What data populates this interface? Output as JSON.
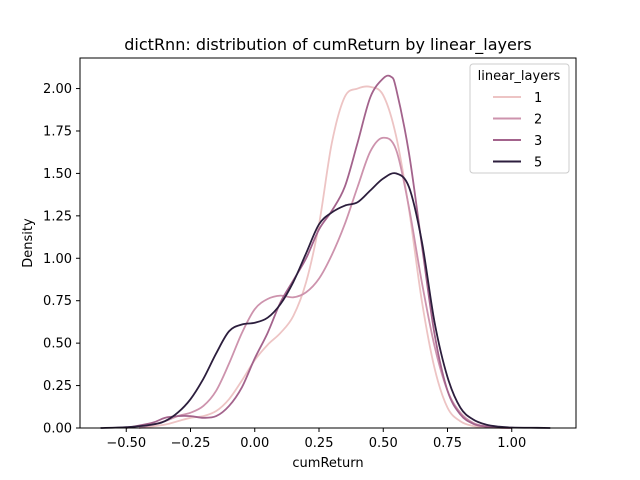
{
  "chart_data": {
    "type": "line",
    "title": "dictRnn: distribution of cumReturn by linear_layers",
    "xlabel": "cumReturn",
    "ylabel": "Density",
    "xlim": [
      -0.68,
      1.25
    ],
    "ylim": [
      0,
      2.18
    ],
    "xticks": [
      -0.5,
      -0.25,
      0.0,
      0.25,
      0.5,
      0.75,
      1.0
    ],
    "xtick_labels": [
      "−0.50",
      "−0.25",
      "0.00",
      "0.25",
      "0.50",
      "0.75",
      "1.00"
    ],
    "yticks": [
      0.0,
      0.25,
      0.5,
      0.75,
      1.0,
      1.25,
      1.5,
      1.75,
      2.0
    ],
    "ytick_labels": [
      "0.00",
      "0.25",
      "0.50",
      "0.75",
      "1.00",
      "1.25",
      "1.50",
      "1.75",
      "2.00"
    ],
    "grid": false,
    "legend": {
      "title": "linear_layers",
      "placement": "top-right"
    },
    "series": [
      {
        "name": "1",
        "color": "#edc4c4",
        "x": [
          -0.45,
          -0.35,
          -0.3,
          -0.25,
          -0.2,
          -0.15,
          -0.1,
          -0.05,
          0.0,
          0.05,
          0.1,
          0.15,
          0.2,
          0.25,
          0.3,
          0.35,
          0.4,
          0.45,
          0.5,
          0.55,
          0.6,
          0.65,
          0.7,
          0.75,
          0.8,
          0.85,
          0.9,
          0.95,
          1.0
        ],
        "y": [
          0.0,
          0.02,
          0.04,
          0.06,
          0.07,
          0.1,
          0.17,
          0.28,
          0.4,
          0.49,
          0.56,
          0.66,
          0.86,
          1.2,
          1.68,
          1.95,
          2.0,
          2.01,
          1.96,
          1.72,
          1.29,
          0.75,
          0.35,
          0.12,
          0.04,
          0.012,
          0.004,
          0.001,
          0.0
        ]
      },
      {
        "name": "2",
        "color": "#cd93ad",
        "x": [
          -0.45,
          -0.35,
          -0.3,
          -0.25,
          -0.2,
          -0.15,
          -0.1,
          -0.05,
          0.0,
          0.05,
          0.1,
          0.15,
          0.2,
          0.25,
          0.3,
          0.35,
          0.4,
          0.45,
          0.5,
          0.55,
          0.6,
          0.65,
          0.7,
          0.75,
          0.8,
          0.85,
          0.9,
          0.95,
          1.0
        ],
        "y": [
          0.0,
          0.04,
          0.07,
          0.09,
          0.13,
          0.22,
          0.38,
          0.56,
          0.7,
          0.76,
          0.78,
          0.77,
          0.8,
          0.88,
          1.02,
          1.2,
          1.42,
          1.63,
          1.71,
          1.64,
          1.3,
          0.86,
          0.48,
          0.22,
          0.09,
          0.03,
          0.01,
          0.003,
          0.0
        ]
      },
      {
        "name": "3",
        "color": "#a3638c",
        "x": [
          -0.5,
          -0.4,
          -0.35,
          -0.3,
          -0.25,
          -0.2,
          -0.15,
          -0.1,
          -0.05,
          0.0,
          0.05,
          0.1,
          0.15,
          0.2,
          0.25,
          0.3,
          0.35,
          0.4,
          0.45,
          0.5,
          0.53,
          0.55,
          0.6,
          0.65,
          0.7,
          0.75,
          0.8,
          0.85,
          0.9,
          0.95,
          1.0
        ],
        "y": [
          0.0,
          0.03,
          0.06,
          0.07,
          0.07,
          0.06,
          0.07,
          0.13,
          0.24,
          0.41,
          0.56,
          0.74,
          0.87,
          1.0,
          1.17,
          1.28,
          1.42,
          1.68,
          1.95,
          2.06,
          2.07,
          2.0,
          1.62,
          1.08,
          0.55,
          0.22,
          0.08,
          0.025,
          0.008,
          0.002,
          0.0
        ]
      },
      {
        "name": "5",
        "color": "#2c1e3d",
        "x": [
          -0.6,
          -0.5,
          -0.4,
          -0.35,
          -0.3,
          -0.25,
          -0.2,
          -0.15,
          -0.1,
          -0.05,
          0.0,
          0.05,
          0.1,
          0.15,
          0.2,
          0.25,
          0.3,
          0.35,
          0.4,
          0.45,
          0.5,
          0.55,
          0.6,
          0.65,
          0.7,
          0.75,
          0.8,
          0.85,
          0.9,
          0.95,
          1.0,
          1.1,
          1.15
        ],
        "y": [
          0.0,
          0.005,
          0.02,
          0.04,
          0.09,
          0.17,
          0.29,
          0.44,
          0.57,
          0.61,
          0.62,
          0.65,
          0.73,
          0.86,
          1.03,
          1.2,
          1.27,
          1.31,
          1.33,
          1.4,
          1.47,
          1.5,
          1.42,
          1.1,
          0.62,
          0.3,
          0.12,
          0.05,
          0.02,
          0.008,
          0.003,
          0.001,
          0.0
        ]
      }
    ]
  }
}
